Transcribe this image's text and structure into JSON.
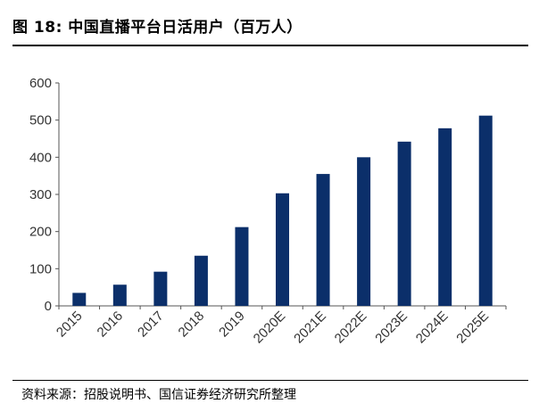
{
  "figure": {
    "title": "图 18:  中国直播平台日活用户（百万人）",
    "source": "资料来源：招股说明书、国信证券经济研究所整理"
  },
  "chart_data": {
    "type": "bar",
    "title": "中国直播平台日活用户（百万人）",
    "xlabel": "",
    "ylabel": "",
    "categories": [
      "2015",
      "2016",
      "2017",
      "2018",
      "2019",
      "2020E",
      "2021E",
      "2022E",
      "2023E",
      "2024E",
      "2025E"
    ],
    "values": [
      35,
      57,
      92,
      135,
      212,
      303,
      355,
      400,
      442,
      478,
      512
    ],
    "ylim": [
      0,
      600
    ],
    "yticks": [
      0,
      100,
      200,
      300,
      400,
      500,
      600
    ],
    "bar_color": "#0B2F6A",
    "grid": false,
    "legend": "none"
  }
}
